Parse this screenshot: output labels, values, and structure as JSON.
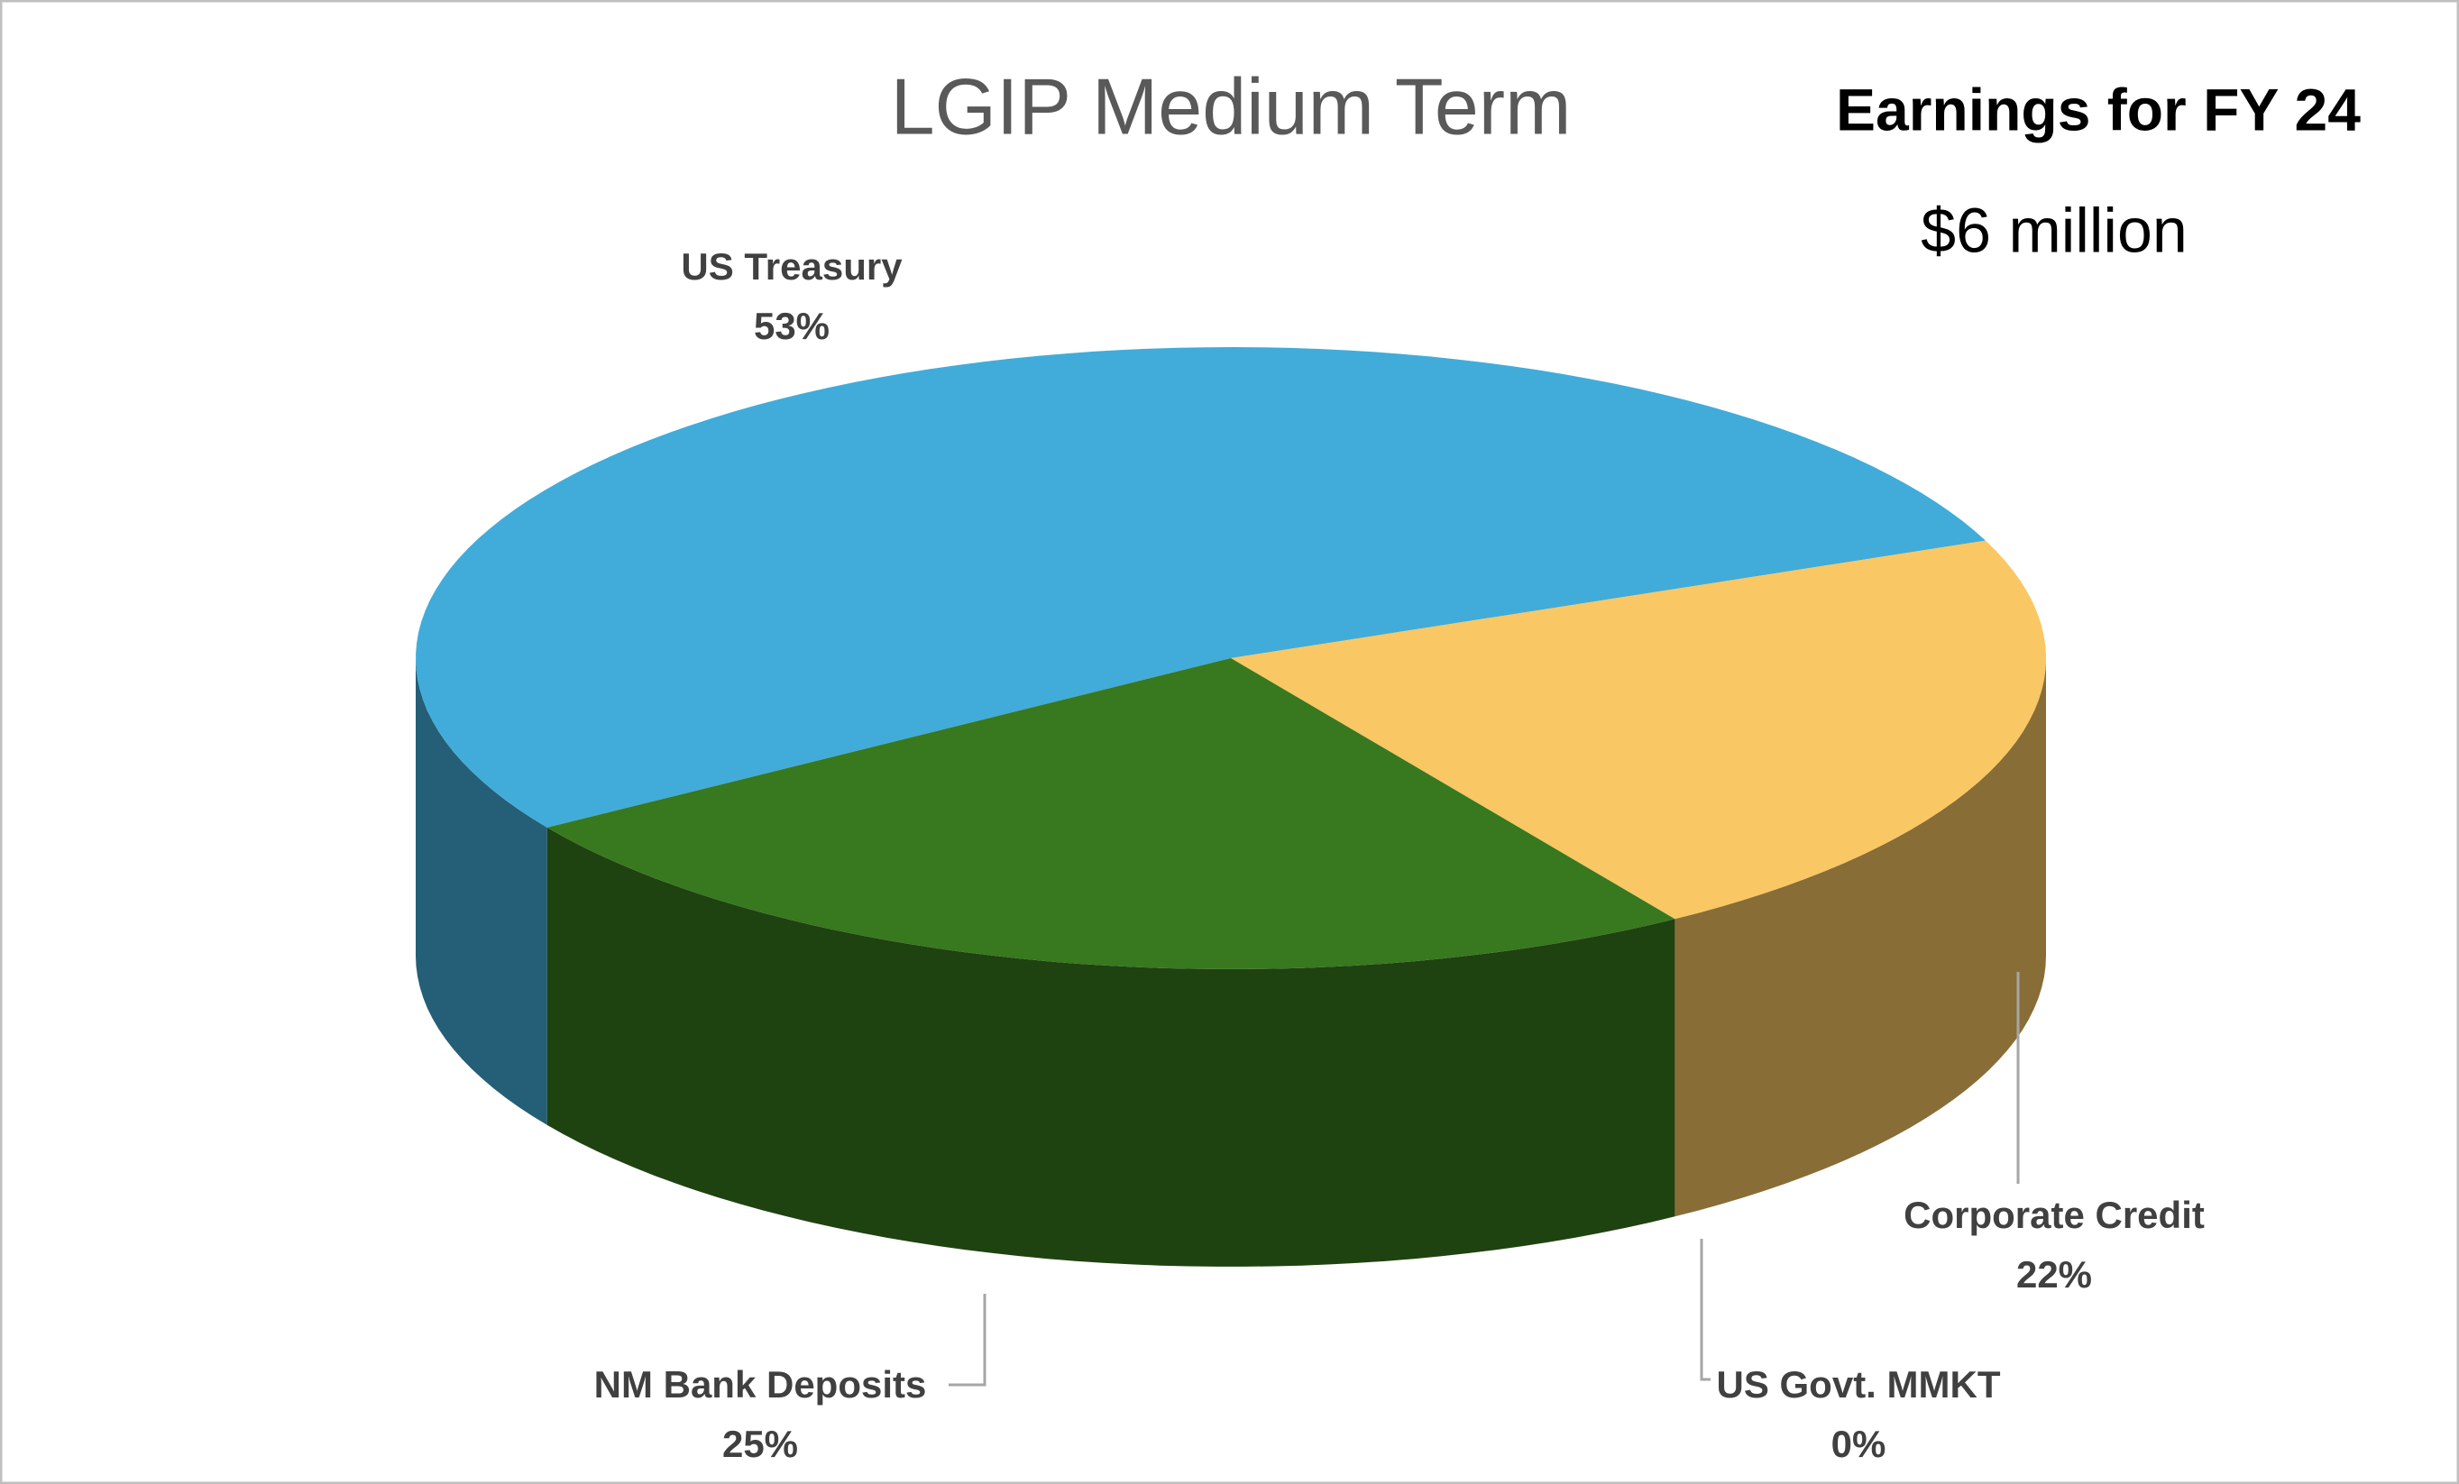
{
  "chart_data": {
    "type": "pie3d",
    "title": "LGIP Medium Term",
    "annotations": [
      "Earnings for FY 24",
      "$6 million"
    ],
    "categories": [
      "US Treasury",
      "Corporate Credit",
      "US Govt. MMKT",
      "NM Bank Deposits"
    ],
    "values": [
      53,
      22,
      0,
      25
    ],
    "value_labels": [
      "53%",
      "22%",
      "0%",
      "25%"
    ],
    "colors": [
      "#41acd9",
      "#f9c764",
      "#7f7f7f",
      "#38781f"
    ]
  }
}
